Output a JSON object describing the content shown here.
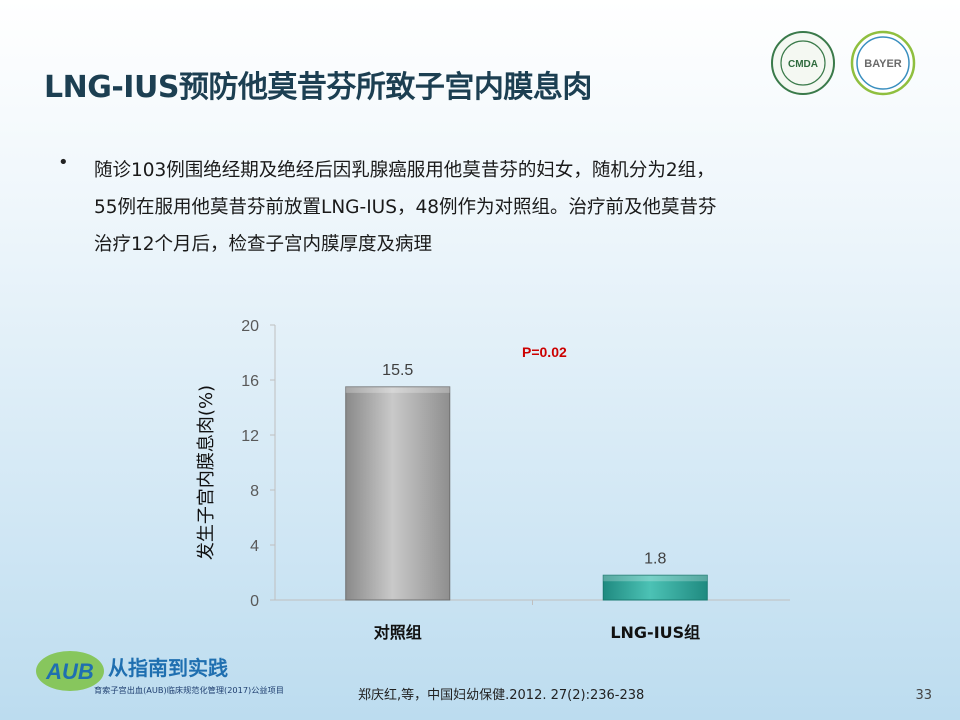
{
  "slide": {
    "title": "LNG-IUS预防他莫昔芬所致子宫内膜息肉",
    "bullet_lines": [
      "随诊103例围绝经期及绝经后因乳腺癌服用他莫昔芬的妇女，随机分为2组，",
      "55例在服用他莫昔芬前放置LNG-IUS，48例作为对照组。治疗前及他莫昔芬",
      "治疗12个月后，检查子宫内膜厚度及病理"
    ],
    "citation": "郑庆红,等，中国妇幼保健.2012. 27(2):236-238",
    "page_number": "33",
    "logo_cmda_text": "CMDA",
    "logo_bayer_text": "BAYER",
    "footer_logo_text": "AUB",
    "footer_logo_title": "从指南到实践",
    "footer_logo_subtitle": "育索子宫出血(AUB)临床规范化管理(2017)公益项目"
  },
  "chart_data": {
    "type": "bar",
    "categories": [
      "对照组",
      "LNG-IUS组"
    ],
    "values": [
      15.5,
      1.8
    ],
    "value_labels": [
      "15.5",
      "1.8"
    ],
    "ylabel": "发生子宫内膜息肉(%)",
    "ylim": [
      0,
      20
    ],
    "yticks": [
      0,
      4,
      8,
      12,
      16,
      20
    ],
    "annotation": "P=0.02",
    "annotation_color": "#cc0000",
    "bar_colors": [
      "#a6a6a6",
      "#2aa79b"
    ],
    "grid": false
  }
}
